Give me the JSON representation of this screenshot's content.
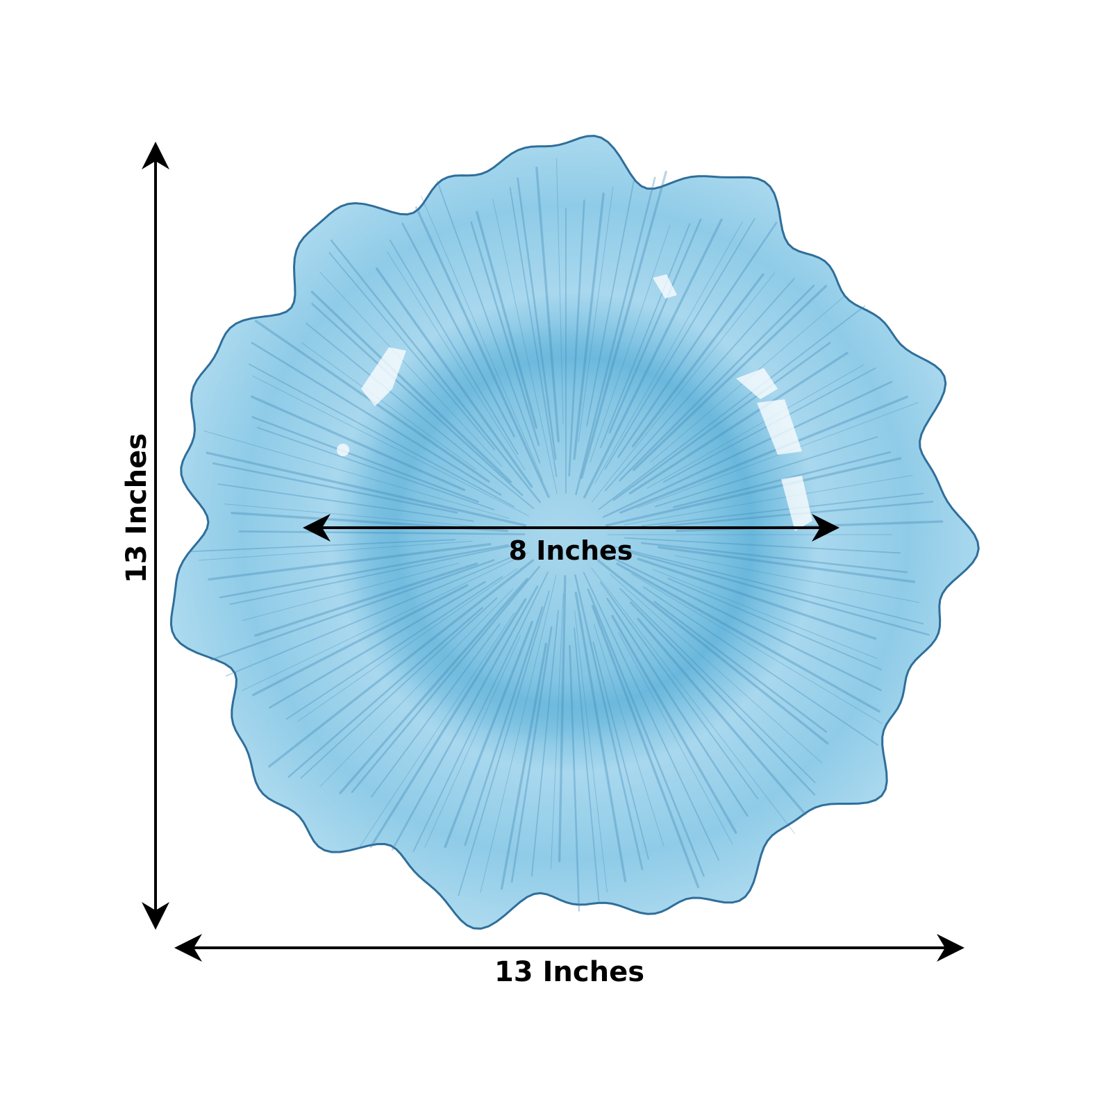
{
  "dimensions": {
    "height_label": "13 Inches",
    "width_label": "13 Inches",
    "inner_label": "8 Inches"
  },
  "colors": {
    "plate_outer": "#9fd3ea",
    "plate_mid": "#7cc0e0",
    "plate_rim_edge": "#2f6e9a",
    "arrow": "#000000",
    "background": "#ffffff"
  },
  "image": {
    "subject": "ruffled-glass-charger-plate"
  }
}
